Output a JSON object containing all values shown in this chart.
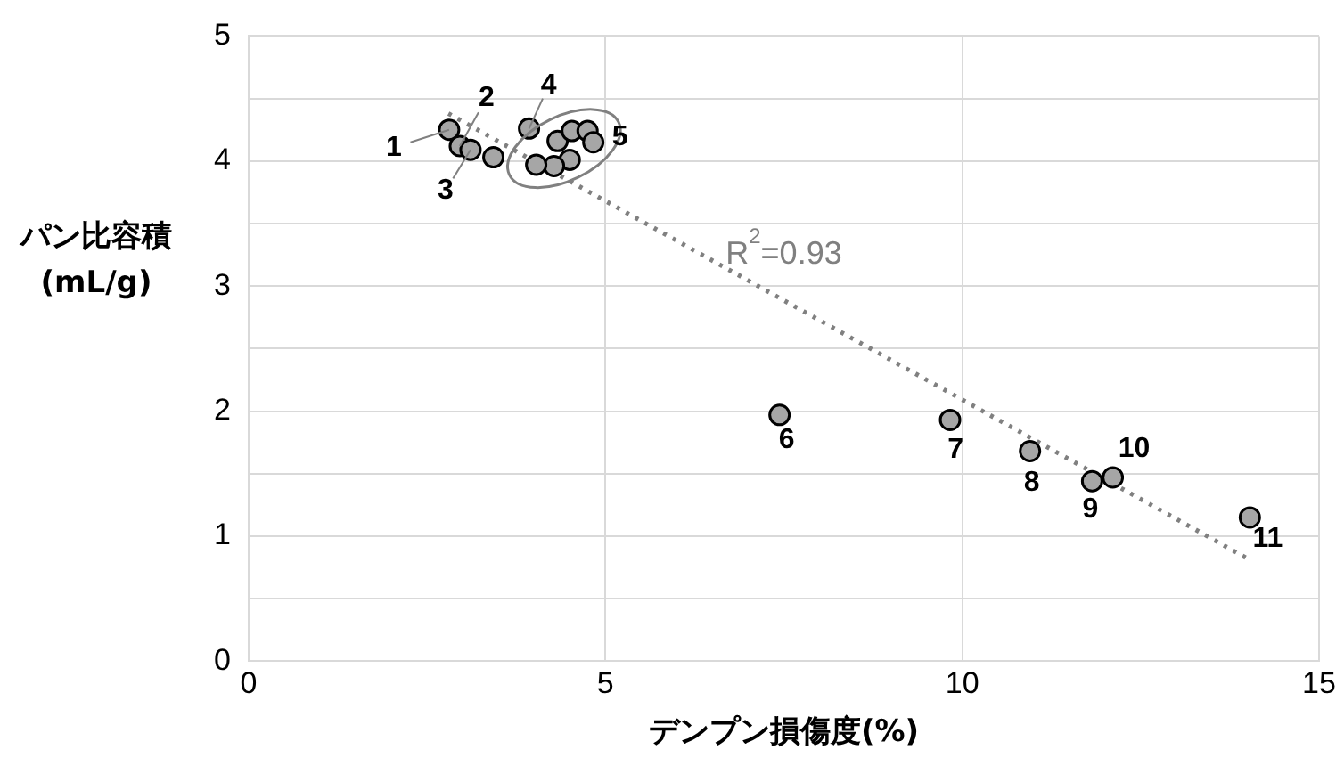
{
  "chart_data": {
    "type": "scatter",
    "xlabel": "デンプン損傷度(%)",
    "ylabel": "パン比容積(mL/g)",
    "xlim": [
      0,
      15
    ],
    "xticks": [
      0,
      5,
      10,
      15
    ],
    "ylim": [
      0,
      5
    ],
    "yticks": [
      0,
      {
        "value": 0.5,
        "label": null
      },
      1,
      {
        "value": 1.5,
        "label": null
      },
      2,
      {
        "value": 2.5,
        "label": null
      },
      3,
      {
        "value": 3.5,
        "label": null
      },
      4,
      {
        "value": 4.5,
        "label": null
      },
      5
    ],
    "grid": true,
    "marker": "circle",
    "series": [
      {
        "type": "scatter",
        "color": "#a6a6a6",
        "x": [
          2.81,
          2.96,
          3.11,
          3.43,
          3.93,
          4.33,
          4.53,
          4.75,
          4.83,
          4.5,
          4.28,
          4.03,
          7.44,
          9.83,
          10.95,
          11.82,
          12.11,
          14.03
        ],
        "values": [
          4.25,
          4.12,
          4.09,
          4.03,
          4.26,
          4.16,
          4.24,
          4.24,
          4.15,
          4.01,
          3.96,
          3.97,
          1.97,
          1.93,
          1.68,
          1.44,
          1.47,
          1.15
        ]
      },
      {
        "type": "line",
        "color": "#808080",
        "line_style": "dotted",
        "marker": "none",
        "x": [
          2.8,
          14.0
        ],
        "values": [
          4.38,
          0.82
        ]
      }
    ],
    "annotations": [
      {
        "text": "1",
        "x": 2.81,
        "y": 4.25
      },
      {
        "text": "2",
        "x": 2.96,
        "y": 4.12
      },
      {
        "text": "3",
        "x": 3.11,
        "y": 4.09
      },
      {
        "text": "4",
        "x": 3.93,
        "y": 4.26
      },
      {
        "text": "5",
        "x": 4.83,
        "y": 4.15
      },
      {
        "text": "6",
        "x": 7.44,
        "y": 1.97
      },
      {
        "text": "7",
        "x": 9.83,
        "y": 1.93
      },
      {
        "text": "8",
        "x": 10.95,
        "y": 1.68
      },
      {
        "text": "9",
        "x": 11.82,
        "y": 1.44
      },
      {
        "text": "10",
        "x": 12.11,
        "y": 1.47
      },
      {
        "text": "11",
        "x": 14.03,
        "y": 1.15
      },
      "R$^{2}$=0.93"
    ]
  }
}
